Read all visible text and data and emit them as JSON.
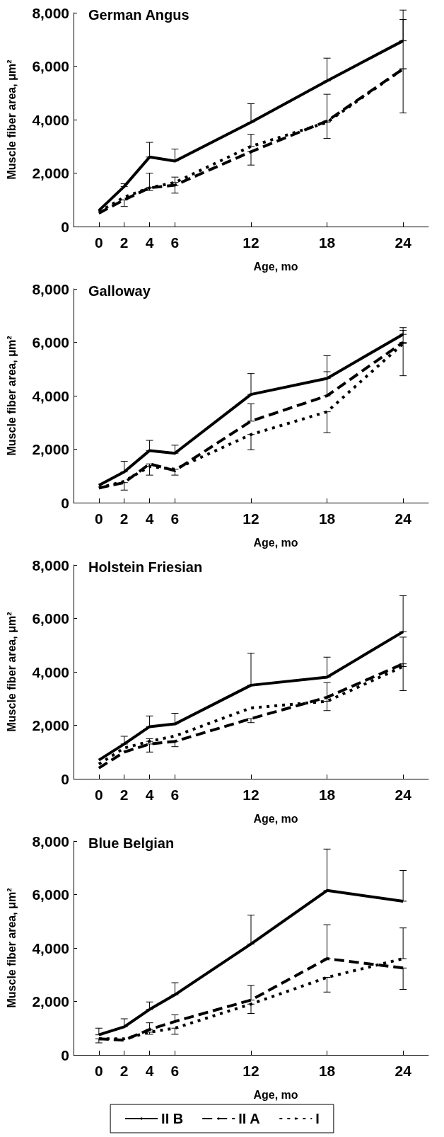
{
  "chart_data": [
    {
      "type": "line",
      "title": "German Angus",
      "xlabel": "Age, mo",
      "ylabel": "Muscle fiber area, μm²",
      "x": [
        0,
        2,
        4,
        6,
        12,
        18,
        24
      ],
      "xlim": [
        -2,
        26
      ],
      "xticks": [
        0,
        2,
        4,
        6,
        12,
        18,
        24
      ],
      "ylim": [
        0,
        8000
      ],
      "yticks": [
        {
          "value": 0,
          "label": "0"
        },
        {
          "value": 2000,
          "label": "2,000"
        },
        {
          "value": 4000,
          "label": "4,000"
        },
        {
          "value": 6000,
          "label": "6,000"
        },
        {
          "value": 8000,
          "label": "8,000"
        }
      ],
      "marker": "none",
      "grid": false,
      "legend": false,
      "series": [
        {
          "color": "#000000",
          "line_style": "solid",
          "values": [
            600,
            1500,
            2600,
            2450,
            3900,
            5450,
            6950
          ],
          "errors": [
            null,
            [
              1500,
              1600
            ],
            [
              2600,
              3150
            ],
            [
              2450,
              2900
            ],
            [
              3900,
              4600
            ],
            [
              5450,
              6300
            ],
            [
              6950,
              8100
            ]
          ]
        },
        {
          "color": "#000000",
          "line_style": "dashed",
          "values": [
            500,
            1000,
            1450,
            1550,
            2800,
            3950,
            5900
          ],
          "errors": [
            null,
            [
              750,
              1000
            ],
            [
              1350,
              1450
            ],
            [
              1250,
              1550
            ],
            [
              2300,
              2800
            ],
            [
              3300,
              3950
            ],
            [
              4250,
              5900
            ]
          ]
        },
        {
          "color": "#000000",
          "line_style": "dotted",
          "values": [
            550,
            1100,
            1450,
            1650,
            3000,
            3900,
            5900
          ],
          "errors": [
            null,
            null,
            [
              1450,
              2000
            ],
            [
              1650,
              1850
            ],
            [
              3000,
              3450
            ],
            [
              3900,
              4950
            ],
            [
              5900,
              7750
            ]
          ]
        }
      ]
    },
    {
      "type": "line",
      "title": "Galloway",
      "xlabel": "Age, mo",
      "ylabel": "Muscle fiber area, μm²",
      "x": [
        0,
        2,
        4,
        6,
        12,
        18,
        24
      ],
      "xlim": [
        -2,
        26
      ],
      "xticks": [
        0,
        2,
        4,
        6,
        12,
        18,
        24
      ],
      "ylim": [
        0,
        8000
      ],
      "yticks": [
        {
          "value": 0,
          "label": "0"
        },
        {
          "value": 2000,
          "label": "2,000"
        },
        {
          "value": 4000,
          "label": "4,000"
        },
        {
          "value": 6000,
          "label": "6,000"
        },
        {
          "value": 8000,
          "label": "8,000"
        }
      ],
      "marker": "none",
      "grid": false,
      "legend": false,
      "series": [
        {
          "color": "#000000",
          "line_style": "solid",
          "values": [
            650,
            1150,
            1950,
            1850,
            4050,
            4650,
            6300
          ],
          "errors": [
            null,
            [
              1150,
              1550
            ],
            [
              1950,
              2330
            ],
            [
              1850,
              2150
            ],
            [
              4050,
              4830
            ],
            [
              4650,
              5500
            ],
            [
              6300,
              6550
            ]
          ]
        },
        {
          "color": "#000000",
          "line_style": "dashed",
          "values": [
            550,
            750,
            1450,
            1200,
            3050,
            4000,
            6000
          ],
          "errors": [
            null,
            [
              470,
              750
            ],
            [
              1030,
              1450
            ],
            null,
            [
              3050,
              3700
            ],
            [
              4000,
              4900
            ],
            [
              6000,
              6450
            ]
          ]
        },
        {
          "color": "#000000",
          "line_style": "dotted",
          "values": [
            550,
            800,
            1350,
            1250,
            2550,
            3400,
            5950
          ],
          "errors": [
            null,
            null,
            null,
            [
              1030,
              1250
            ],
            [
              1980,
              2550
            ],
            [
              2620,
              3400
            ],
            [
              4750,
              5950
            ]
          ]
        }
      ]
    },
    {
      "type": "line",
      "title": "Holstein Friesian",
      "xlabel": "Age, mo",
      "ylabel": "Muscle fiber area, μm²",
      "x": [
        0,
        2,
        4,
        6,
        12,
        18,
        24
      ],
      "xlim": [
        -2,
        26
      ],
      "xticks": [
        0,
        2,
        4,
        6,
        12,
        18,
        24
      ],
      "ylim": [
        0,
        8000
      ],
      "yticks": [
        {
          "value": 0,
          "label": "0"
        },
        {
          "value": 2000,
          "label": "2,000"
        },
        {
          "value": 4000,
          "label": "4,000"
        },
        {
          "value": 6000,
          "label": "6,000"
        },
        {
          "value": 8000,
          "label": "8,000"
        }
      ],
      "marker": "none",
      "grid": false,
      "legend": false,
      "series": [
        {
          "color": "#000000",
          "line_style": "solid",
          "values": [
            700,
            1300,
            1950,
            2050,
            3500,
            3800,
            5500
          ],
          "errors": [
            null,
            [
              1300,
              1590
            ],
            [
              1950,
              2350
            ],
            [
              2050,
              2450
            ],
            [
              3500,
              4700
            ],
            [
              3800,
              4550
            ],
            [
              5500,
              6850
            ]
          ]
        },
        {
          "color": "#000000",
          "line_style": "dashed",
          "values": [
            400,
            1000,
            1300,
            1400,
            2250,
            3050,
            4300
          ],
          "errors": [
            null,
            null,
            [
              1000,
              1300
            ],
            [
              1200,
              1400
            ],
            [
              2100,
              2250
            ],
            [
              2550,
              3050
            ],
            [
              3300,
              4300
            ]
          ]
        },
        {
          "color": "#000000",
          "line_style": "dotted",
          "values": [
            550,
            1150,
            1400,
            1600,
            2650,
            2900,
            4200
          ],
          "errors": [
            null,
            null,
            [
              1400,
              1500
            ],
            null,
            null,
            [
              2900,
              3600
            ],
            [
              4200,
              5300
            ]
          ]
        }
      ]
    },
    {
      "type": "line",
      "title": "Blue Belgian",
      "xlabel": "Age, mo",
      "ylabel": "Muscle fiber area, μm²",
      "x": [
        0,
        2,
        4,
        6,
        12,
        18,
        24
      ],
      "xlim": [
        -2,
        26
      ],
      "xticks": [
        0,
        2,
        4,
        6,
        12,
        18,
        24
      ],
      "ylim": [
        0,
        8000
      ],
      "yticks": [
        {
          "value": 0,
          "label": "0"
        },
        {
          "value": 2000,
          "label": "2,000"
        },
        {
          "value": 4000,
          "label": "4,000"
        },
        {
          "value": 6000,
          "label": "6,000"
        },
        {
          "value": 8000,
          "label": "8,000"
        }
      ],
      "marker": "none",
      "grid": false,
      "legend": "bottom",
      "series": [
        {
          "name": "II B",
          "color": "#000000",
          "line_style": "solid",
          "values": [
            750,
            1050,
            1700,
            2250,
            4150,
            6150,
            5750
          ],
          "errors": [
            [
              750,
              1000
            ],
            [
              1050,
              1350
            ],
            [
              1700,
              1980
            ],
            [
              2250,
              2700
            ],
            [
              4150,
              5230
            ],
            [
              6150,
              7700
            ],
            [
              5750,
              6900
            ]
          ]
        },
        {
          "name": "II A",
          "color": "#000000",
          "line_style": "dashed",
          "values": [
            600,
            550,
            950,
            1250,
            2050,
            3600,
            3250
          ],
          "errors": [
            [
              450,
              600
            ],
            null,
            [
              950,
              1200
            ],
            [
              1250,
              1500
            ],
            [
              2050,
              2600
            ],
            [
              3600,
              4870
            ],
            [
              2450,
              3250
            ]
          ]
        },
        {
          "name": "I",
          "color": "#000000",
          "line_style": "dotted",
          "values": [
            600,
            600,
            850,
            1000,
            1900,
            2900,
            3600
          ],
          "errors": [
            null,
            null,
            [
              770,
              850
            ],
            [
              770,
              1000
            ],
            [
              1550,
              1900
            ],
            [
              2350,
              2900
            ],
            [
              3600,
              4750
            ]
          ]
        }
      ]
    }
  ]
}
